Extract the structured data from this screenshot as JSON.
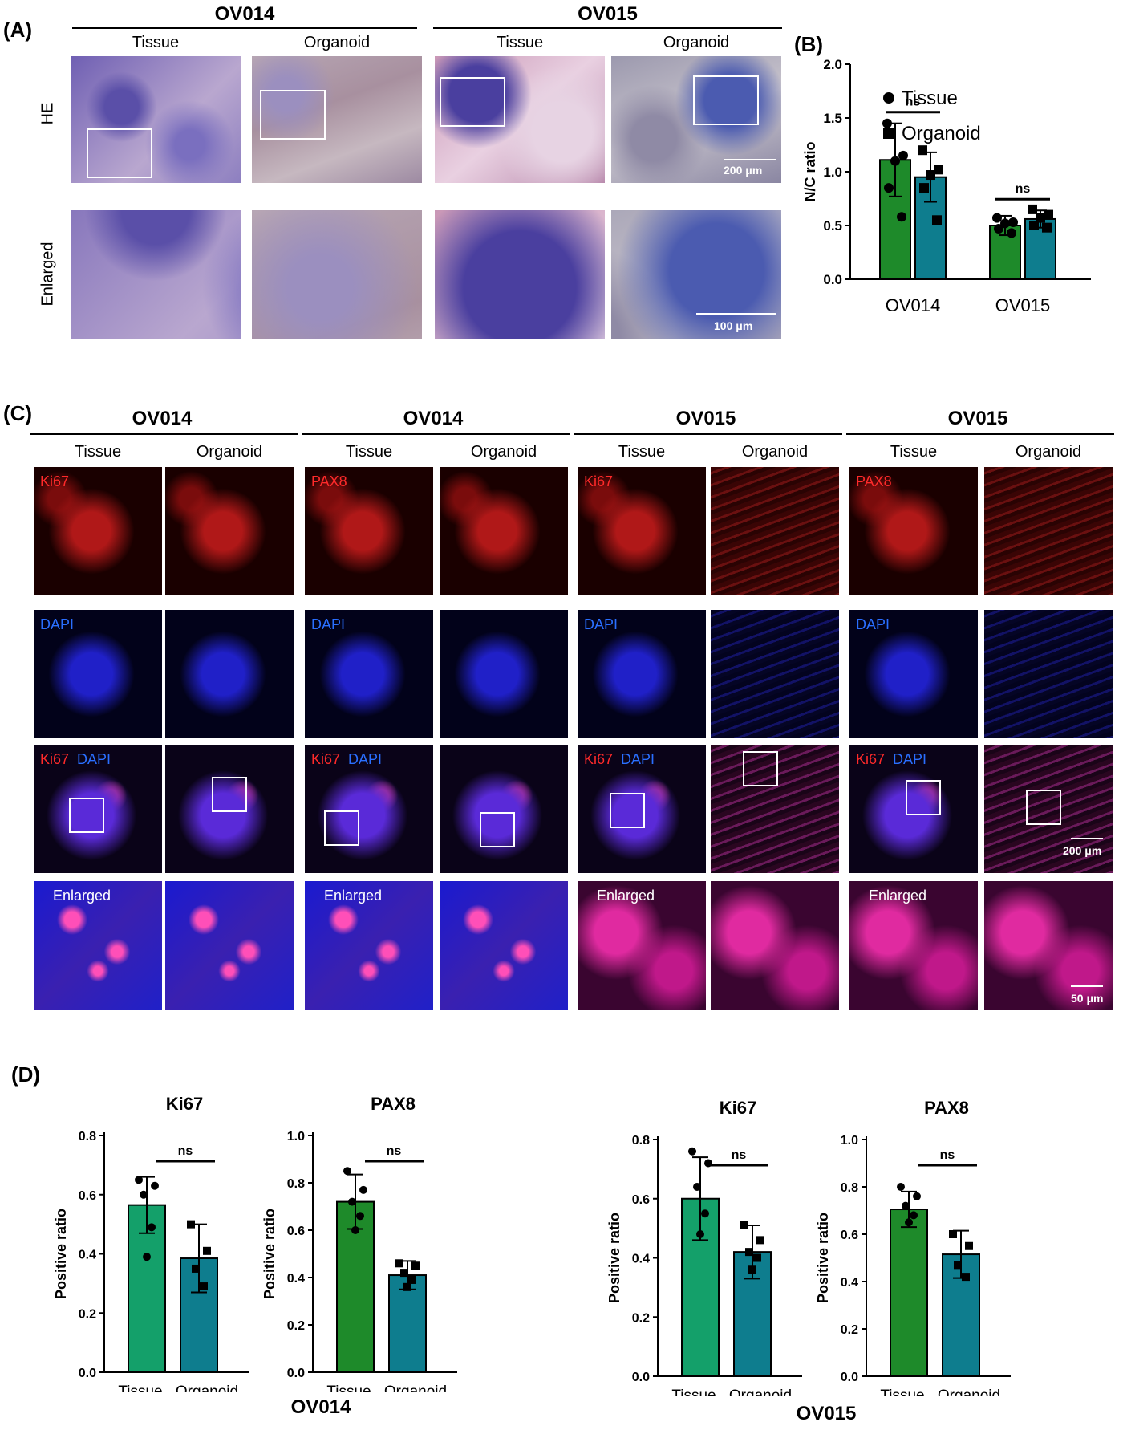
{
  "panelA": {
    "label": "(A)",
    "groups": [
      "OV014",
      "OV015"
    ],
    "columns": [
      "Tissue",
      "Organoid",
      "Tissue",
      "Organoid"
    ],
    "rows": [
      "HE",
      "Enlarged"
    ],
    "scale_top": "200 μm",
    "scale_bottom": "100 μm"
  },
  "panelB": {
    "label": "(B)"
  },
  "panelC": {
    "label": "(C)",
    "groups": [
      "OV014",
      "OV014",
      "OV015",
      "OV015"
    ],
    "columns": [
      "Tissue",
      "Organoid",
      "Tissue",
      "Organoid",
      "Tissue",
      "Organoid",
      "Tissue",
      "Organoid"
    ],
    "marker_row1": [
      "Ki67",
      "PAX8",
      "Ki67",
      "PAX8"
    ],
    "dapi": "DAPI",
    "merge_red": [
      "Ki67",
      "Ki67",
      "Ki67",
      "Ki67"
    ],
    "merge_blue": "DAPI",
    "enlarged": "Enlarged",
    "scale_200": "200 μm",
    "scale_50": "50 μm"
  },
  "panelD": {
    "label": "(D)",
    "group_left": "OV014",
    "group_right": "OV015"
  },
  "colors": {
    "tissue_green": "#1e8a2a",
    "tissue_teal": "#14a06a",
    "organoid": "#0e7d8e"
  },
  "chart_data": [
    {
      "type": "bar",
      "panel": "B",
      "ylabel": "N/C ratio",
      "ylim": [
        0,
        2.0
      ],
      "yticks": [
        0.0,
        0.5,
        1.0,
        1.5,
        2.0
      ],
      "ytick_labels": [
        "0.0",
        "0.5",
        "1.0",
        "1.5",
        "2.0"
      ],
      "categories": [
        "OV014",
        "OV015"
      ],
      "series": [
        {
          "name": "Tissue",
          "marker": "circle",
          "values": [
            1.11,
            0.5
          ],
          "err": [
            0.34,
            0.09
          ],
          "points": [
            [
              1.45,
              1.15,
              1.1,
              0.85,
              0.58
            ],
            [
              0.57,
              0.53,
              0.52,
              0.47,
              0.43
            ]
          ]
        },
        {
          "name": "Organoid",
          "marker": "square",
          "values": [
            0.95,
            0.56
          ],
          "err": [
            0.23,
            0.08
          ],
          "points": [
            [
              1.2,
              1.02,
              0.97,
              0.85,
              0.55
            ],
            [
              0.65,
              0.6,
              0.57,
              0.5,
              0.48
            ]
          ]
        }
      ],
      "annotations": [
        "ns",
        "ns"
      ],
      "legend": "top-right"
    },
    {
      "type": "bar",
      "panel": "D-OV014-Ki67",
      "title": "Ki67",
      "ylabel": "Positive ratio",
      "ylim": [
        0,
        0.8
      ],
      "ytick_labels": [
        "0.0",
        "0.2",
        "0.4",
        "0.6",
        "0.8"
      ],
      "categories": [
        "Tissue",
        "Organoid"
      ],
      "values": [
        0.565,
        0.385
      ],
      "err": [
        0.095,
        0.115
      ],
      "points": [
        [
          0.65,
          0.63,
          0.6,
          0.49,
          0.39
        ],
        [
          0.5,
          0.41,
          0.35,
          0.29
        ]
      ],
      "annotation": "ns"
    },
    {
      "type": "bar",
      "panel": "D-OV014-PAX8",
      "title": "PAX8",
      "ylabel": "Positive ratio",
      "ylim": [
        0,
        1.0
      ],
      "ytick_labels": [
        "0.0",
        "0.2",
        "0.4",
        "0.6",
        "0.8",
        "1.0"
      ],
      "categories": [
        "Tissue",
        "Organoid"
      ],
      "values": [
        0.72,
        0.41
      ],
      "err": [
        0.115,
        0.06
      ],
      "points": [
        [
          0.85,
          0.77,
          0.72,
          0.66,
          0.6
        ],
        [
          0.46,
          0.45,
          0.42,
          0.39,
          0.36
        ]
      ],
      "annotation": "ns"
    },
    {
      "type": "bar",
      "panel": "D-OV015-Ki67",
      "title": "Ki67",
      "ylabel": "Positive ratio",
      "ylim": [
        0,
        0.8
      ],
      "ytick_labels": [
        "0.0",
        "0.2",
        "0.4",
        "0.6",
        "0.8"
      ],
      "categories": [
        "Tissue",
        "Organoid"
      ],
      "values": [
        0.6,
        0.42
      ],
      "err": [
        0.14,
        0.09
      ],
      "points": [
        [
          0.76,
          0.72,
          0.64,
          0.55,
          0.48
        ],
        [
          0.51,
          0.46,
          0.42,
          0.4,
          0.36
        ]
      ],
      "annotation": "ns"
    },
    {
      "type": "bar",
      "panel": "D-OV015-PAX8",
      "title": "PAX8",
      "ylabel": "Positive ratio",
      "ylim": [
        0,
        1.0
      ],
      "ytick_labels": [
        "0.0",
        "0.2",
        "0.4",
        "0.6",
        "0.8",
        "1.0"
      ],
      "categories": [
        "Tissue",
        "Organoid"
      ],
      "values": [
        0.705,
        0.515
      ],
      "err": [
        0.075,
        0.1
      ],
      "points": [
        [
          0.8,
          0.76,
          0.72,
          0.68,
          0.65
        ],
        [
          0.6,
          0.55,
          0.47,
          0.42
        ]
      ],
      "annotation": "ns"
    }
  ]
}
